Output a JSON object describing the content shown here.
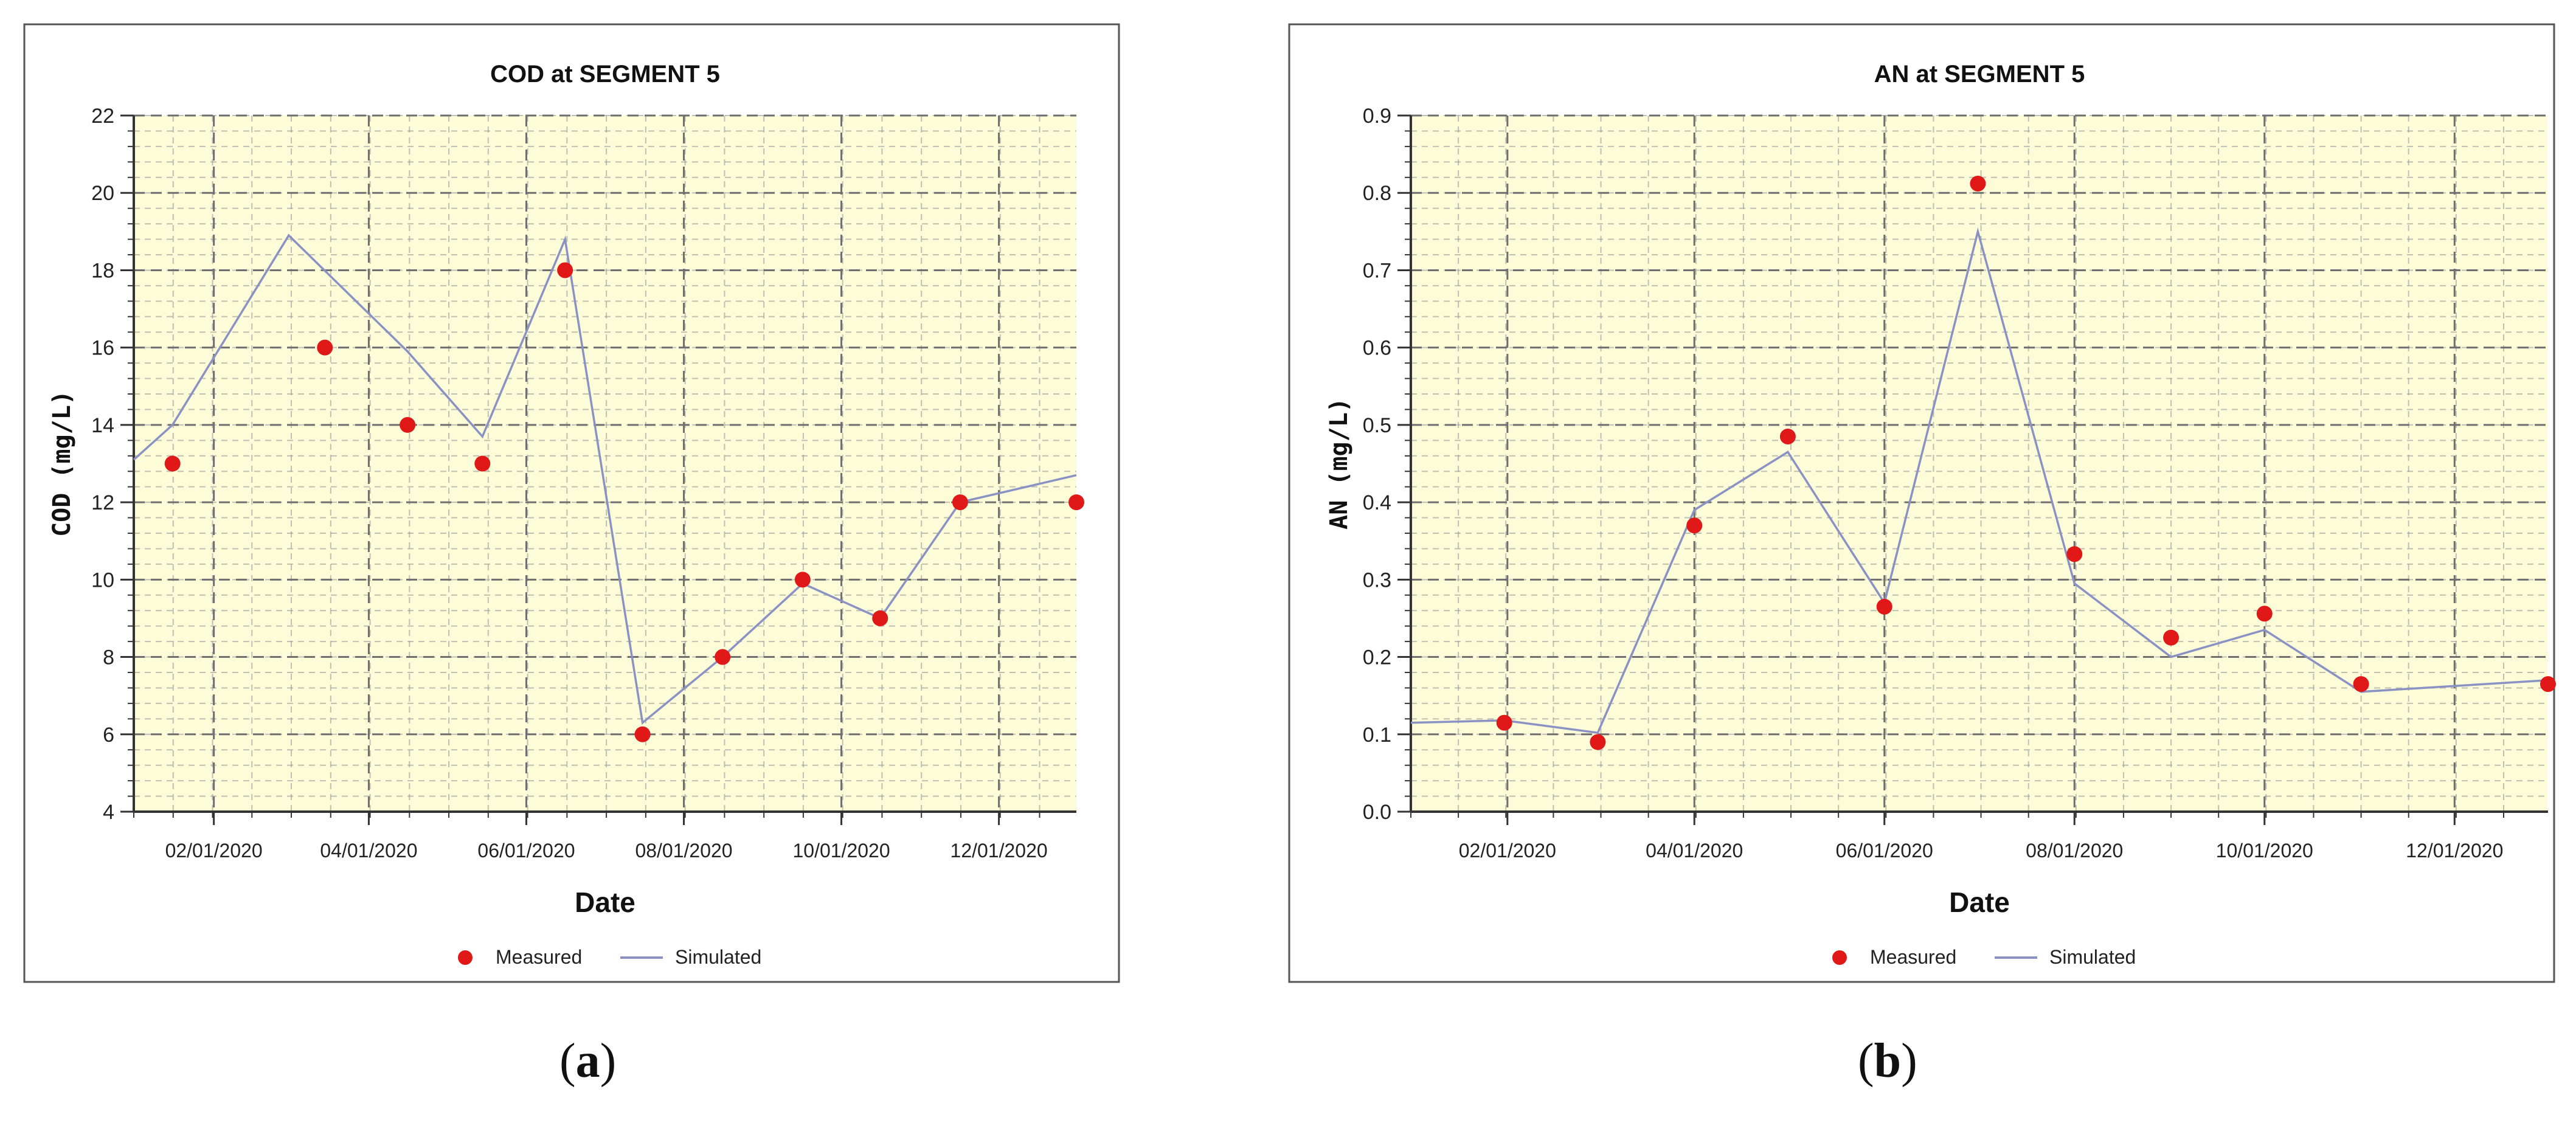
{
  "colors": {
    "plot_bg": "#fcfcd8",
    "grid": "#999999",
    "measured": "#e01818",
    "simulated": "#8a92c4",
    "frame": "#333333"
  },
  "captions": [
    {
      "open": "(",
      "letter": "a",
      "close": ")"
    },
    {
      "open": "(",
      "letter": "b",
      "close": ")"
    }
  ],
  "chart_data": [
    {
      "type": "scatter+line",
      "title": "COD at SEGMENT 5",
      "xlabel": "Date",
      "ylabel": "COD (mg/L)",
      "x_range": [
        "2020-01-01",
        "2020-12-31"
      ],
      "xticks": [
        "02/01/2020",
        "04/01/2020",
        "06/01/2020",
        "08/01/2020",
        "10/01/2020",
        "12/01/2020"
      ],
      "ylim": [
        4,
        22
      ],
      "yticks": [
        "4",
        "6",
        "8",
        "10",
        "12",
        "14",
        "16",
        "18",
        "20",
        "22"
      ],
      "grid": true,
      "legend": [
        "Measured",
        "Simulated"
      ],
      "legend_position": "bottom-center",
      "series": [
        {
          "name": "Measured",
          "kind": "scatter",
          "points": [
            {
              "x": "2020-01-16",
              "y": 13
            },
            {
              "x": "2020-03-15",
              "y": 16
            },
            {
              "x": "2020-04-16",
              "y": 14
            },
            {
              "x": "2020-05-15",
              "y": 13
            },
            {
              "x": "2020-06-16",
              "y": 18
            },
            {
              "x": "2020-07-16",
              "y": 6
            },
            {
              "x": "2020-08-16",
              "y": 8
            },
            {
              "x": "2020-09-16",
              "y": 10
            },
            {
              "x": "2020-10-16",
              "y": 9
            },
            {
              "x": "2020-11-16",
              "y": 12
            },
            {
              "x": "2020-12-31",
              "y": 12
            }
          ]
        },
        {
          "name": "Simulated",
          "kind": "line",
          "points": [
            {
              "x": "2020-01-01",
              "y": 13.1
            },
            {
              "x": "2020-01-16",
              "y": 14.0
            },
            {
              "x": "2020-03-01",
              "y": 18.9
            },
            {
              "x": "2020-04-16",
              "y": 15.9
            },
            {
              "x": "2020-05-15",
              "y": 13.7
            },
            {
              "x": "2020-06-16",
              "y": 18.8
            },
            {
              "x": "2020-07-16",
              "y": 6.3
            },
            {
              "x": "2020-08-16",
              "y": 8.0
            },
            {
              "x": "2020-09-16",
              "y": 9.9
            },
            {
              "x": "2020-10-16",
              "y": 9.0
            },
            {
              "x": "2020-11-16",
              "y": 12.0
            },
            {
              "x": "2020-12-31",
              "y": 12.7
            }
          ]
        }
      ]
    },
    {
      "type": "scatter+line",
      "title": "AN at SEGMENT 5",
      "xlabel": "Date",
      "ylabel": "AN (mg/L)",
      "x_range": [
        "2020-01-01",
        "2020-12-31"
      ],
      "xticks": [
        "02/01/2020",
        "04/01/2020",
        "06/01/2020",
        "08/01/2020",
        "10/01/2020",
        "12/01/2020"
      ],
      "ylim": [
        0,
        0.9
      ],
      "yticks": [
        "0.0",
        "0.1",
        "0.2",
        "0.3",
        "0.4",
        "0.5",
        "0.6",
        "0.7",
        "0.8",
        "0.9"
      ],
      "grid": true,
      "legend": [
        "Measured",
        "Simulated"
      ],
      "legend_position": "bottom-center",
      "series": [
        {
          "name": "Measured",
          "kind": "scatter",
          "points": [
            {
              "x": "2020-01-31",
              "y": 0.115
            },
            {
              "x": "2020-03-01",
              "y": 0.09
            },
            {
              "x": "2020-04-01",
              "y": 0.37
            },
            {
              "x": "2020-05-01",
              "y": 0.485
            },
            {
              "x": "2020-06-01",
              "y": 0.265
            },
            {
              "x": "2020-07-01",
              "y": 0.812
            },
            {
              "x": "2020-08-01",
              "y": 0.333
            },
            {
              "x": "2020-09-01",
              "y": 0.225
            },
            {
              "x": "2020-10-01",
              "y": 0.256
            },
            {
              "x": "2020-11-01",
              "y": 0.165
            },
            {
              "x": "2020-12-31",
              "y": 0.165
            }
          ]
        },
        {
          "name": "Simulated",
          "kind": "line",
          "points": [
            {
              "x": "2020-01-01",
              "y": 0.115
            },
            {
              "x": "2020-01-31",
              "y": 0.118
            },
            {
              "x": "2020-03-01",
              "y": 0.102
            },
            {
              "x": "2020-04-01",
              "y": 0.39
            },
            {
              "x": "2020-05-01",
              "y": 0.465
            },
            {
              "x": "2020-06-01",
              "y": 0.27
            },
            {
              "x": "2020-07-01",
              "y": 0.75
            },
            {
              "x": "2020-08-01",
              "y": 0.295
            },
            {
              "x": "2020-09-01",
              "y": 0.2
            },
            {
              "x": "2020-10-01",
              "y": 0.235
            },
            {
              "x": "2020-11-01",
              "y": 0.155
            },
            {
              "x": "2020-12-31",
              "y": 0.17
            }
          ]
        }
      ]
    }
  ]
}
